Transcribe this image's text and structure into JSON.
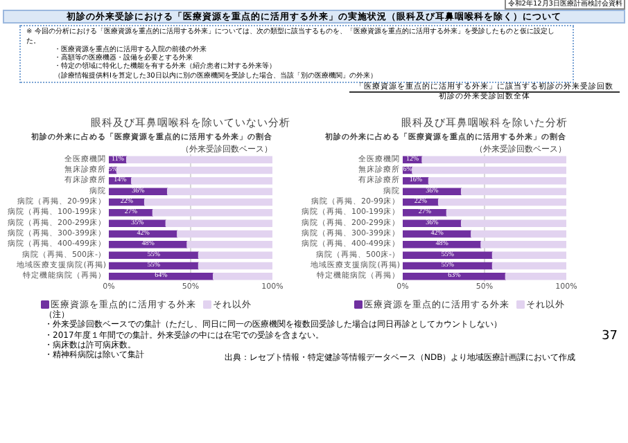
{
  "chart_data": [
    {
      "type": "bar",
      "orientation": "horizontal",
      "stacked": true,
      "title": "眼科及び耳鼻咽喉科を除いていない分析",
      "subtitle": "初診の外来に占める「医療資源を重点的に活用する外来」の割合",
      "categories": [
        "全医療機関",
        "無床診療所",
        "有床診療所",
        "病院",
        "病院（再掲、20-99床）",
        "病院（再掲、100-199床）",
        "病院（再掲、200-299床）",
        "病院（再掲、300-399床）",
        "病院（再掲、400-499床）",
        "病院（再掲、500床-）",
        "地域医療支援病院(再掲)",
        "特定機能病院（再掲）"
      ],
      "series": [
        {
          "name": "医療資源を重点的に活用する外来",
          "color": "#7030a0",
          "values": [
            11,
            5,
            14,
            36,
            22,
            27,
            35,
            42,
            48,
            55,
            55,
            64
          ],
          "value_labels": [
            "11%",
            "5%",
            "14%",
            "36%",
            "22%",
            "27%",
            "35%",
            "42%",
            "48%",
            "55%",
            "55%",
            "64%"
          ]
        },
        {
          "name": "それ以外",
          "color": "#e2d3f0",
          "values": [
            89,
            95,
            86,
            64,
            78,
            73,
            65,
            58,
            52,
            45,
            45,
            36
          ]
        }
      ],
      "xlim": [
        0,
        100
      ],
      "xticks": [
        {
          "value": 0,
          "label": "0%"
        },
        {
          "value": 50,
          "label": "50%"
        },
        {
          "value": 100,
          "label": "100%"
        }
      ],
      "grid": "x",
      "legend": "bottom",
      "annotations": [
        "（外来受診回数ベース）",
        "令和2年12月3日医療計画検討会資料",
        "初診の外来受診における「医療資源を重点的に活用する外来」の実施状況（眼科及び耳鼻咽喉科を除く）について",
        "※ 今回の分析における「医療資源を重点的に活用する外来」については、次の類型に該当するものを、「医療資源を重点的に活用する外来」を受診したものと仮に設定した。",
        "・医療資源を重点的に活用する入院の前後の外来",
        "・高額等の医療機器・設備を必要とする外来",
        "・特定の領域に特化した機能を有する外来（紹介患者に対する外来等）",
        "（診療情報提供料Ⅰを算定した30日以内に別の医療機関を受診した場合、当該「別の医療機関」の外来）",
        "「医療資源を重点的に活用する外来」に該当する初診の外来受診回数",
        "初診の外来受診回数全体"
      ]
    },
    {
      "type": "bar",
      "orientation": "horizontal",
      "stacked": true,
      "title": "眼科及び耳鼻咽喉科を除いた分析",
      "subtitle": "初診の外来に占める「医療資源を重点的に活用する外来」の割合",
      "categories": [
        "全医療機関",
        "無床診療所",
        "有床診療所",
        "病院",
        "病院（再掲、20-99床）",
        "病院（再掲、100-199床）",
        "病院（再掲、200-299床）",
        "病院（再掲、300-399床）",
        "病院（再掲、400-499床）",
        "病院（再掲、500床-）",
        "地域医療支援病院(再掲)",
        "特定機能病院（再掲）"
      ],
      "series": [
        {
          "name": "医療資源を重点的に活用する外来",
          "color": "#7030a0",
          "values": [
            12,
            6,
            16,
            36,
            22,
            27,
            36,
            42,
            48,
            55,
            55,
            63
          ],
          "value_labels": [
            "12%",
            "6%",
            "16%",
            "36%",
            "22%",
            "27%",
            "36%",
            "42%",
            "48%",
            "55%",
            "55%",
            "63%"
          ]
        },
        {
          "name": "それ以外",
          "color": "#e2d3f0",
          "values": [
            88,
            94,
            84,
            64,
            78,
            73,
            64,
            58,
            52,
            45,
            45,
            37
          ]
        }
      ],
      "xlim": [
        0,
        100
      ],
      "xticks": [
        {
          "value": 0,
          "label": "0%"
        },
        {
          "value": 50,
          "label": "50%"
        },
        {
          "value": 100,
          "label": "100%"
        }
      ],
      "grid": "x",
      "legend": "bottom",
      "annotations": [
        "（外来受診回数ベース）",
        "（注）",
        "・外来受診回数ベースでの集計（ただし、同日に同一の医療機関を複数回受診した場合は同日再診としてカウントしない）",
        "・2017年度１年間での集計。外来受診の中には在宅での受診を含まない。",
        "・病床数は許可病床数。",
        "・精神科病院は除いて集計",
        "出典：レセプト情報・特定健診等情報データベース（NDB）より地域医療計画課において作成",
        "37"
      ]
    }
  ]
}
